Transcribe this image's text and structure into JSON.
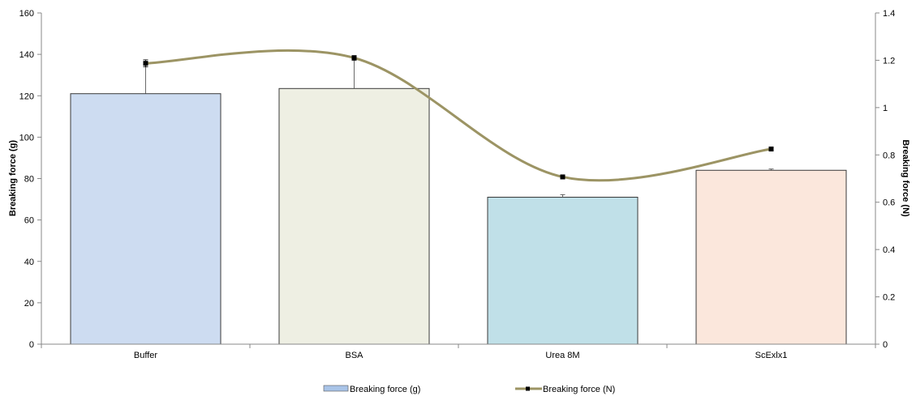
{
  "chart_data": {
    "type": "bar",
    "categories": [
      "Buffer",
      "BSA",
      "Urea 8M",
      "ScExlx1"
    ],
    "bar_series": {
      "name": "Breaking force (g)",
      "values": [
        121,
        123.5,
        71,
        84
      ],
      "error": [
        14,
        14.5,
        1.2,
        0.6
      ],
      "colors": [
        "#cddcf1",
        "#eeefe3",
        "#c0e0e8",
        "#fbe7dc"
      ]
    },
    "line_series": {
      "name": "Breaking force (N)",
      "values": [
        1.187,
        1.21,
        0.707,
        0.825
      ],
      "error": [
        0.015,
        0.01,
        0.008,
        0.008
      ],
      "color": "#9c9464",
      "marker_color": "#000000"
    },
    "y_left": {
      "label": "Breaking force (g)",
      "lim": [
        0,
        160
      ],
      "ticks": [
        0,
        20,
        40,
        60,
        80,
        100,
        120,
        140,
        160
      ]
    },
    "y_right": {
      "label": "Breaking force (N)",
      "lim": [
        0,
        1.4
      ],
      "ticks": [
        0,
        0.2,
        0.4,
        0.6,
        0.8,
        1,
        1.2,
        1.4
      ]
    },
    "grid": false,
    "legend": "bottom-center"
  }
}
